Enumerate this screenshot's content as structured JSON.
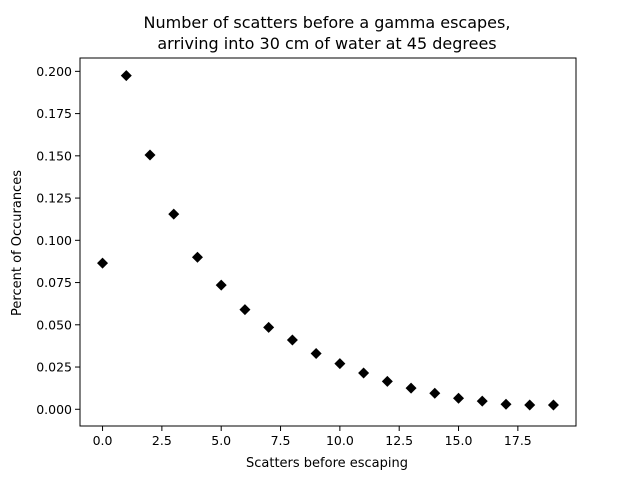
{
  "chart_data": {
    "type": "scatter",
    "title_lines": [
      "Number of scatters before a gamma escapes,",
      "arriving into 30 cm of water at 45 degrees"
    ],
    "xlabel": "Scatters before escaping",
    "ylabel": "Percent of Occurances",
    "xlim": [
      -0.95,
      19.95
    ],
    "ylim": [
      -0.0099,
      0.2079
    ],
    "x_ticks": [
      0.0,
      2.5,
      5.0,
      7.5,
      10.0,
      12.5,
      15.0,
      17.5
    ],
    "x_tick_labels": [
      "0.0",
      "2.5",
      "5.0",
      "7.5",
      "10.0",
      "12.5",
      "15.0",
      "17.5"
    ],
    "y_ticks": [
      0.0,
      0.025,
      0.05,
      0.075,
      0.1,
      0.125,
      0.15,
      0.175,
      0.2
    ],
    "y_tick_labels": [
      "0.000",
      "0.025",
      "0.050",
      "0.075",
      "0.100",
      "0.125",
      "0.150",
      "0.175",
      "0.200"
    ],
    "marker": "diamond",
    "marker_color": "#000000",
    "grid": false,
    "x": [
      0,
      1,
      2,
      3,
      4,
      5,
      6,
      7,
      8,
      9,
      10,
      11,
      12,
      13,
      14,
      15,
      16,
      17,
      18,
      19
    ],
    "y": [
      0.0865,
      0.1975,
      0.1505,
      0.1155,
      0.09,
      0.0735,
      0.059,
      0.0485,
      0.041,
      0.033,
      0.027,
      0.0215,
      0.0165,
      0.0125,
      0.0095,
      0.0065,
      0.0048,
      0.003,
      0.0025,
      0.0025
    ]
  }
}
